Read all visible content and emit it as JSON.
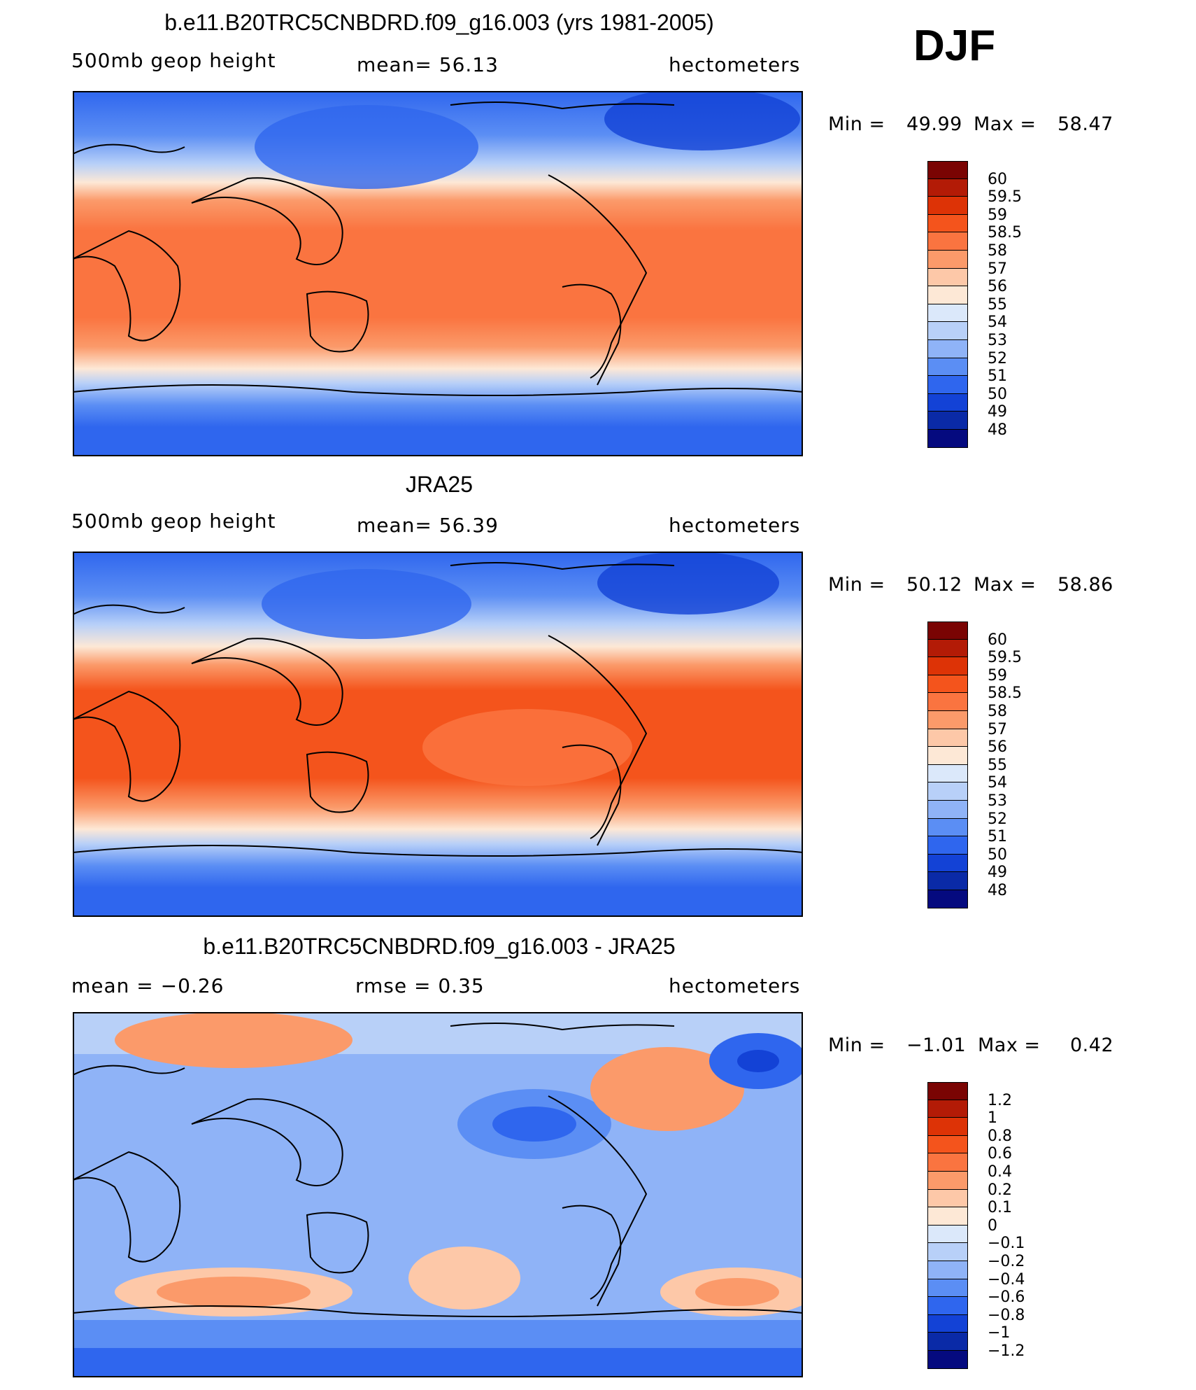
{
  "season": "DJF",
  "panels": [
    {
      "title": "b.e11.B20TRC5CNBDRD.f09_g16.003 (yrs 1981-2005)",
      "left_label": "500mb  geop  height",
      "center_label": "mean=   56.13",
      "units": "hectometers",
      "min_label": "Min  =",
      "min_value": "49.99",
      "max_label": "Max  =",
      "max_value": "58.47",
      "levels": [
        "60",
        "59.5",
        "59",
        "58.5",
        "58",
        "57",
        "56",
        "55",
        "54",
        "53",
        "52",
        "51",
        "50",
        "49",
        "48"
      ],
      "colors": [
        "#7a0403",
        "#b31b06",
        "#dd3306",
        "#f4541c",
        "#fa7440",
        "#fb9a6a",
        "#fdc8a8",
        "#fde8d6",
        "#dbe8fa",
        "#b8d0f8",
        "#8fb3f7",
        "#5b8ef4",
        "#2f66ee",
        "#1342d6",
        "#0a2aa7",
        "#050a7f"
      ]
    },
    {
      "title": "JRA25",
      "left_label": "500mb  geop  height",
      "center_label": "mean=   56.39",
      "units": "hectometers",
      "min_label": "Min  =",
      "min_value": "50.12",
      "max_label": "Max  =",
      "max_value": "58.86",
      "levels": [
        "60",
        "59.5",
        "59",
        "58.5",
        "58",
        "57",
        "56",
        "55",
        "54",
        "53",
        "52",
        "51",
        "50",
        "49",
        "48"
      ],
      "colors": [
        "#7a0403",
        "#b31b06",
        "#dd3306",
        "#f4541c",
        "#fa7440",
        "#fb9a6a",
        "#fdc8a8",
        "#fde8d6",
        "#dbe8fa",
        "#b8d0f8",
        "#8fb3f7",
        "#5b8ef4",
        "#2f66ee",
        "#1342d6",
        "#0a2aa7",
        "#050a7f"
      ]
    },
    {
      "title": "b.e11.B20TRC5CNBDRD.f09_g16.003 - JRA25",
      "left_label": "mean  =    −0.26",
      "center_label": "rmse  =     0.35",
      "units": "hectometers",
      "min_label": "Min  =",
      "min_value": "−1.01",
      "max_label": "Max  =",
      "max_value": "0.42",
      "levels": [
        "1.2",
        "1",
        "0.8",
        "0.6",
        "0.4",
        "0.2",
        "0.1",
        "0",
        "−0.1",
        "−0.2",
        "−0.4",
        "−0.6",
        "−0.8",
        "−1",
        "−1.2"
      ],
      "colors": [
        "#7a0403",
        "#b31b06",
        "#dd3306",
        "#f4541c",
        "#fa7440",
        "#fb9a6a",
        "#fdc8a8",
        "#fde8d6",
        "#dbe8fa",
        "#b8d0f8",
        "#8fb3f7",
        "#5b8ef4",
        "#2f66ee",
        "#1342d6",
        "#0a2aa7",
        "#050a7f"
      ]
    }
  ]
}
